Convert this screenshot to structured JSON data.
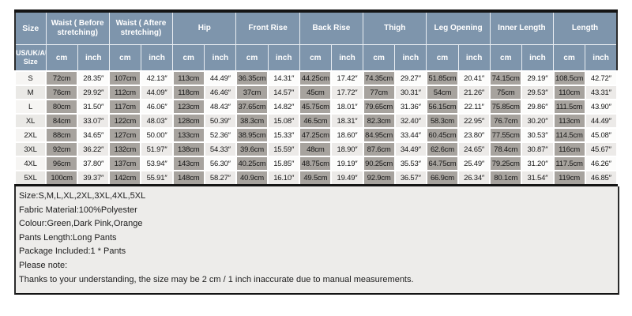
{
  "table": {
    "header": {
      "size_label": "Size",
      "sub_size_label": "US/UK/AU Size",
      "groups": [
        "Waist ( Before stretching)",
        "Waist ( Aftere stretching)",
        "Hip",
        "Front Rise",
        "Back Rise",
        "Thigh",
        "Leg Opening",
        "Inner Length",
        "Length"
      ],
      "unit_cm": "cm",
      "unit_inch": "inch"
    },
    "rows": [
      {
        "size": "S",
        "cells": [
          "72cm",
          "28.35″",
          "107cm",
          "42.13″",
          "113cm",
          "44.49″",
          "36.35cm",
          "14.31″",
          "44.25cm",
          "17.42″",
          "74.35cm",
          "29.27″",
          "51.85cm",
          "20.41″",
          "74.15cm",
          "29.19″",
          "108.5cm",
          "42.72″"
        ]
      },
      {
        "size": "M",
        "cells": [
          "76cm",
          "29.92″",
          "112cm",
          "44.09″",
          "118cm",
          "46.46″",
          "37cm",
          "14.57″",
          "45cm",
          "17.72″",
          "77cm",
          "30.31″",
          "54cm",
          "21.26″",
          "75cm",
          "29.53″",
          "110cm",
          "43.31″"
        ]
      },
      {
        "size": "L",
        "cells": [
          "80cm",
          "31.50″",
          "117cm",
          "46.06″",
          "123cm",
          "48.43″",
          "37.65cm",
          "14.82″",
          "45.75cm",
          "18.01″",
          "79.65cm",
          "31.36″",
          "56.15cm",
          "22.11″",
          "75.85cm",
          "29.86″",
          "111.5cm",
          "43.90″"
        ]
      },
      {
        "size": "XL",
        "cells": [
          "84cm",
          "33.07″",
          "122cm",
          "48.03″",
          "128cm",
          "50.39″",
          "38.3cm",
          "15.08″",
          "46.5cm",
          "18.31″",
          "82.3cm",
          "32.40″",
          "58.3cm",
          "22.95″",
          "76.7cm",
          "30.20″",
          "113cm",
          "44.49″"
        ]
      },
      {
        "size": "2XL",
        "cells": [
          "88cm",
          "34.65″",
          "127cm",
          "50.00″",
          "133cm",
          "52.36″",
          "38.95cm",
          "15.33″",
          "47.25cm",
          "18.60″",
          "84.95cm",
          "33.44″",
          "60.45cm",
          "23.80″",
          "77.55cm",
          "30.53″",
          "114.5cm",
          "45.08″"
        ]
      },
      {
        "size": "3XL",
        "cells": [
          "92cm",
          "36.22″",
          "132cm",
          "51.97″",
          "138cm",
          "54.33″",
          "39.6cm",
          "15.59″",
          "48cm",
          "18.90″",
          "87.6cm",
          "34.49″",
          "62.6cm",
          "24.65″",
          "78.4cm",
          "30.87″",
          "116cm",
          "45.67″"
        ]
      },
      {
        "size": "4XL",
        "cells": [
          "96cm",
          "37.80″",
          "137cm",
          "53.94″",
          "143cm",
          "56.30″",
          "40.25cm",
          "15.85″",
          "48.75cm",
          "19.19″",
          "90.25cm",
          "35.53″",
          "64.75cm",
          "25.49″",
          "79.25cm",
          "31.20″",
          "117.5cm",
          "46.26″"
        ]
      },
      {
        "size": "5XL",
        "cells": [
          "100cm",
          "39.37″",
          "142cm",
          "55.91″",
          "148cm",
          "58.27″",
          "40.9cm",
          "16.10″",
          "49.5cm",
          "19.49″",
          "92.9cm",
          "36.57″",
          "66.9cm",
          "26.34″",
          "80.1cm",
          "31.54″",
          "119cm",
          "46.85″"
        ]
      }
    ]
  },
  "notes": [
    "Size:S,M,L,XL,2XL,3XL,4XL,5XL",
    "Fabric Material:100%Polyester",
    "Colour:Green,Dark Pink,Orange",
    "Pants Length:Long Pants",
    "Package Included:1 * Pants",
    "Please note:",
    "Thanks to your understanding, the size may be 2 cm / 1 inch inaccurate due to manual measurements."
  ],
  "colors": {
    "header_bg": "#7e95ac",
    "cm_cell_bg": "#a7a39e",
    "notes_bg": "#edecea",
    "border_dark": "#141414",
    "grid_white": "#ffffff"
  }
}
